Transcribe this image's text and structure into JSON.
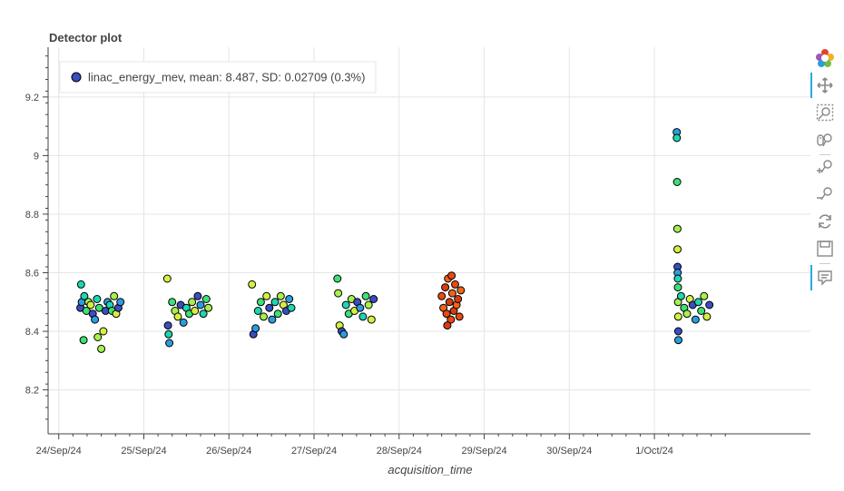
{
  "chart_data": {
    "type": "scatter",
    "title": "Detector plot",
    "xlabel": "acquisition_time",
    "ylabel": "",
    "x_axis": {
      "type": "datetime",
      "range": [
        "2024-09-23T21:00",
        "2024-10-02T20:00"
      ],
      "ticks": [
        "2024-09-24",
        "2024-09-25",
        "2024-09-26",
        "2024-09-27",
        "2024-09-28",
        "2024-09-29",
        "2024-09-30",
        "2024-10-01"
      ],
      "tick_labels": [
        "24/Sep/24",
        "25/Sep/24",
        "26/Sep/24",
        "27/Sep/24",
        "28/Sep/24",
        "29/Sep/24",
        "30/Sep/24",
        "1/Oct/24"
      ]
    },
    "y_axis": {
      "range": [
        8.05,
        9.37
      ],
      "ticks": [
        8.2,
        8.4,
        8.6,
        8.8,
        9.0,
        9.2
      ],
      "tick_labels": [
        "8.2",
        "8.4",
        "8.6",
        "8.8",
        "9",
        "9.2"
      ]
    },
    "grid": true,
    "legend": {
      "position": "top-left",
      "entry": "linac_energy_mev, mean: 8.487, SD: 0.02709 (0.3%)",
      "marker_color": "#3a4ec0"
    },
    "series": [
      {
        "name": "linac_energy_mev",
        "marker_colors": [
          "#3a4ec0",
          "#2b9ce0",
          "#1ed6b0",
          "#3ee074",
          "#a6f04c",
          "#d4f040"
        ],
        "points": [
          [
            "2024-09-24T06:06",
            8.48
          ],
          [
            "2024-09-24T06:30",
            8.5
          ],
          [
            "2024-09-24T07:12",
            8.52
          ],
          [
            "2024-09-24T07:48",
            8.47
          ],
          [
            "2024-09-24T08:24",
            8.5
          ],
          [
            "2024-09-24T09:00",
            8.49
          ],
          [
            "2024-09-24T09:36",
            8.46
          ],
          [
            "2024-09-24T10:12",
            8.44
          ],
          [
            "2024-09-24T10:48",
            8.51
          ],
          [
            "2024-09-24T11:24",
            8.48
          ],
          [
            "2024-09-24T12:00",
            8.34
          ],
          [
            "2024-09-24T12:36",
            8.4
          ],
          [
            "2024-09-24T13:12",
            8.47
          ],
          [
            "2024-09-24T13:48",
            8.5
          ],
          [
            "2024-09-24T14:24",
            8.49
          ],
          [
            "2024-09-24T15:00",
            8.47
          ],
          [
            "2024-09-24T15:36",
            8.52
          ],
          [
            "2024-09-24T16:12",
            8.46
          ],
          [
            "2024-09-24T16:48",
            8.48
          ],
          [
            "2024-09-24T17:24",
            8.5
          ],
          [
            "2024-09-24T06:18",
            8.56
          ],
          [
            "2024-09-24T07:00",
            8.37
          ],
          [
            "2024-09-24T11:00",
            8.38
          ],
          [
            "2024-09-25T06:36",
            8.58
          ],
          [
            "2024-09-25T06:48",
            8.42
          ],
          [
            "2024-09-25T07:12",
            8.36
          ],
          [
            "2024-09-25T07:00",
            8.39
          ],
          [
            "2024-09-25T08:00",
            8.5
          ],
          [
            "2024-09-25T08:48",
            8.47
          ],
          [
            "2024-09-25T09:36",
            8.45
          ],
          [
            "2024-09-25T10:24",
            8.49
          ],
          [
            "2024-09-25T11:12",
            8.43
          ],
          [
            "2024-09-25T12:00",
            8.48
          ],
          [
            "2024-09-25T12:48",
            8.46
          ],
          [
            "2024-09-25T13:36",
            8.5
          ],
          [
            "2024-09-25T14:24",
            8.47
          ],
          [
            "2024-09-25T15:12",
            8.52
          ],
          [
            "2024-09-25T16:00",
            8.49
          ],
          [
            "2024-09-25T16:48",
            8.46
          ],
          [
            "2024-09-25T17:36",
            8.51
          ],
          [
            "2024-09-25T18:12",
            8.48
          ],
          [
            "2024-09-26T06:30",
            8.56
          ],
          [
            "2024-09-26T06:54",
            8.39
          ],
          [
            "2024-09-26T07:30",
            8.41
          ],
          [
            "2024-09-26T08:12",
            8.47
          ],
          [
            "2024-09-26T09:00",
            8.5
          ],
          [
            "2024-09-26T09:48",
            8.45
          ],
          [
            "2024-09-26T10:36",
            8.52
          ],
          [
            "2024-09-26T11:24",
            8.48
          ],
          [
            "2024-09-26T12:12",
            8.44
          ],
          [
            "2024-09-26T13:00",
            8.5
          ],
          [
            "2024-09-26T13:48",
            8.46
          ],
          [
            "2024-09-26T14:36",
            8.52
          ],
          [
            "2024-09-26T15:24",
            8.49
          ],
          [
            "2024-09-26T16:12",
            8.47
          ],
          [
            "2024-09-26T17:00",
            8.51
          ],
          [
            "2024-09-26T17:36",
            8.48
          ],
          [
            "2024-09-27T06:36",
            8.58
          ],
          [
            "2024-09-27T06:48",
            8.53
          ],
          [
            "2024-09-27T07:12",
            8.42
          ],
          [
            "2024-09-27T07:48",
            8.4
          ],
          [
            "2024-09-27T08:24",
            8.39
          ],
          [
            "2024-09-27T09:00",
            8.49
          ],
          [
            "2024-09-27T09:48",
            8.46
          ],
          [
            "2024-09-27T10:36",
            8.51
          ],
          [
            "2024-09-27T11:24",
            8.47
          ],
          [
            "2024-09-27T12:12",
            8.5
          ],
          [
            "2024-09-27T13:00",
            8.48
          ],
          [
            "2024-09-27T13:48",
            8.45
          ],
          [
            "2024-09-27T14:36",
            8.52
          ],
          [
            "2024-09-27T15:24",
            8.49
          ],
          [
            "2024-09-27T16:12",
            8.44
          ],
          [
            "2024-09-27T16:48",
            8.51
          ],
          [
            "2024-10-01T06:18",
            9.08
          ],
          [
            "2024-10-01T06:20",
            9.06
          ],
          [
            "2024-10-01T06:24",
            8.91
          ],
          [
            "2024-10-01T06:28",
            8.75
          ],
          [
            "2024-10-01T06:30",
            8.68
          ],
          [
            "2024-10-01T06:32",
            8.62
          ],
          [
            "2024-10-01T06:34",
            8.6
          ],
          [
            "2024-10-01T06:36",
            8.58
          ],
          [
            "2024-10-01T06:38",
            8.55
          ],
          [
            "2024-10-01T06:40",
            8.5
          ],
          [
            "2024-10-01T06:42",
            8.45
          ],
          [
            "2024-10-01T06:44",
            8.4
          ],
          [
            "2024-10-01T06:46",
            8.37
          ],
          [
            "2024-10-01T07:30",
            8.52
          ],
          [
            "2024-10-01T08:24",
            8.48
          ],
          [
            "2024-10-01T09:12",
            8.46
          ],
          [
            "2024-10-01T10:00",
            8.51
          ],
          [
            "2024-10-01T10:48",
            8.49
          ],
          [
            "2024-10-01T11:36",
            8.44
          ],
          [
            "2024-10-01T12:24",
            8.5
          ],
          [
            "2024-10-01T13:12",
            8.47
          ],
          [
            "2024-10-01T14:00",
            8.52
          ],
          [
            "2024-10-01T14:48",
            8.45
          ],
          [
            "2024-10-01T15:30",
            8.49
          ]
        ]
      },
      {
        "name": "",
        "marker_colors": [
          "#e84a12",
          "#f06418",
          "#d83c0e"
        ],
        "points": [
          [
            "2024-09-28T12:00",
            8.52
          ],
          [
            "2024-09-28T12:30",
            8.48
          ],
          [
            "2024-09-28T13:00",
            8.55
          ],
          [
            "2024-09-28T13:24",
            8.46
          ],
          [
            "2024-09-28T13:48",
            8.58
          ],
          [
            "2024-09-28T14:12",
            8.5
          ],
          [
            "2024-09-28T14:36",
            8.44
          ],
          [
            "2024-09-28T15:00",
            8.53
          ],
          [
            "2024-09-28T15:24",
            8.47
          ],
          [
            "2024-09-28T15:48",
            8.56
          ],
          [
            "2024-09-28T16:12",
            8.49
          ],
          [
            "2024-09-28T16:36",
            8.51
          ],
          [
            "2024-09-28T17:00",
            8.45
          ],
          [
            "2024-09-28T17:24",
            8.54
          ],
          [
            "2024-09-28T13:36",
            8.42
          ],
          [
            "2024-09-28T14:48",
            8.59
          ]
        ]
      }
    ]
  }
}
